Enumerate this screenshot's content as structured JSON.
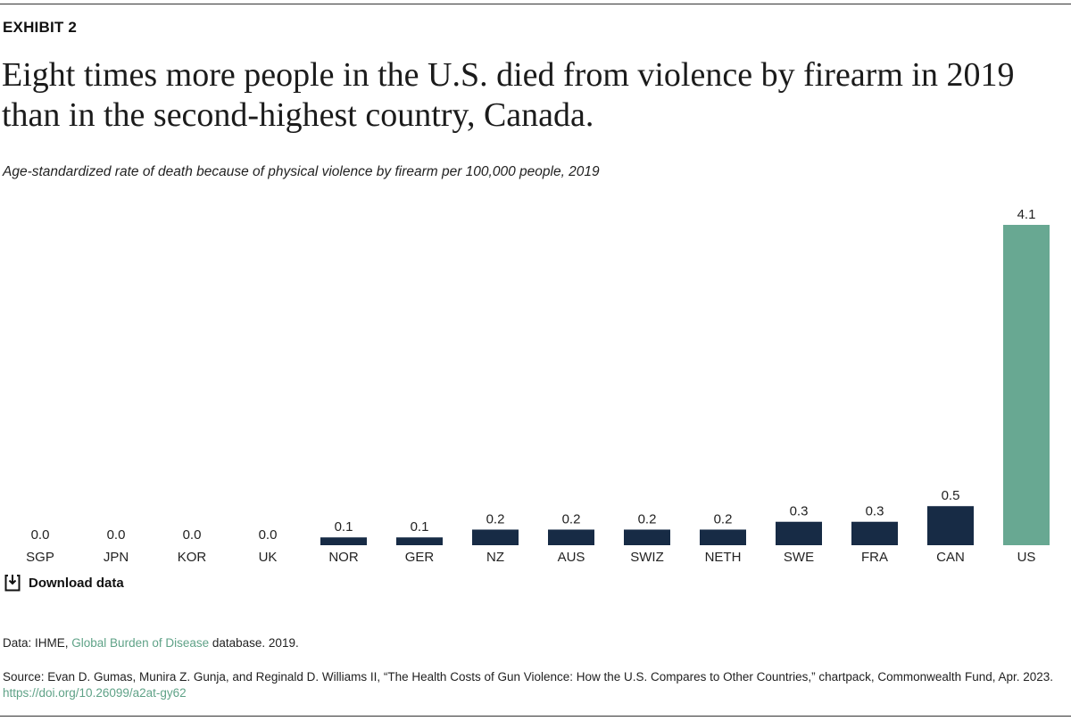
{
  "chart_data": {
    "type": "bar",
    "label": "EXHIBIT 2",
    "title": "Eight times more people in the U.S. died from violence by firearm in 2019 than in the second-highest country, Canada.",
    "subtitle": "Age-standardized rate of death because of physical violence by firearm per 100,000 people, 2019",
    "categories": [
      "SGP",
      "JPN",
      "KOR",
      "UK",
      "NOR",
      "GER",
      "NZ",
      "AUS",
      "SWIZ",
      "NETH",
      "SWE",
      "FRA",
      "CAN",
      "US"
    ],
    "values": [
      0,
      0,
      0,
      0,
      0.1,
      0.1,
      0.2,
      0.2,
      0.2,
      0.2,
      0.3,
      0.3,
      0.5,
      4.1
    ],
    "value_labels": [
      "0.0",
      "0.0",
      "0.0",
      "0.0",
      "0.1",
      "0.1",
      "0.2",
      "0.2",
      "0.2",
      "0.2",
      "0.3",
      "0.3",
      "0.5",
      "4.1"
    ],
    "colors": [
      "#172b45",
      "#172b45",
      "#172b45",
      "#172b45",
      "#172b45",
      "#172b45",
      "#172b45",
      "#172b45",
      "#172b45",
      "#172b45",
      "#172b45",
      "#172b45",
      "#172b45",
      "#68a892"
    ],
    "download_label": "Download data",
    "data_note": {
      "prefix": "Data: IHME, ",
      "link": "Global Burden of Disease",
      "suffix": " database. 2019."
    },
    "source_note": {
      "text": "Source: Evan D. Gumas, Munira Z. Gunja, and Reginald D. Williams II, “The Health Costs of Gun Violence: How the U.S. Compares to Other Countries,” chartpack, Commonwealth Fund, Apr. 2023. ",
      "link": "https://doi.org/10.26099/a2at-gy62"
    }
  }
}
